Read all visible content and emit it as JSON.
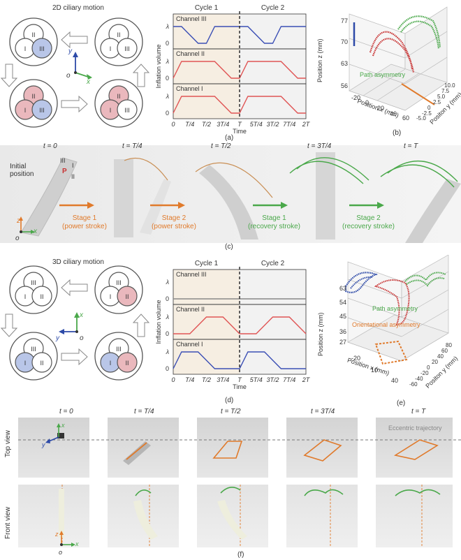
{
  "panel_a": {
    "title": "2D ciliary motion",
    "caption": "(a)",
    "axes": {
      "x": "x",
      "y": "y",
      "o": "o"
    },
    "units": [
      {
        "labels": [
          "II",
          "I",
          "III"
        ],
        "colors": [
          "#ffffff",
          "#ffffff",
          "#b9c6e8"
        ]
      },
      {
        "labels": [
          "II",
          "I",
          "III"
        ],
        "colors": [
          "#ffffff",
          "#ffffff",
          "#ffffff"
        ]
      },
      {
        "labels": [
          "II",
          "I",
          "III"
        ],
        "colors": [
          "#eab8bd",
          "#eab8bd",
          "#b9c6e8"
        ]
      },
      {
        "labels": [
          "II",
          "I",
          "III"
        ],
        "colors": [
          "#eab8bd",
          "#eab8bd",
          "#ffffff"
        ]
      }
    ]
  },
  "chart_a": {
    "cycle1": "Cycle 1",
    "cycle2": "Cycle 2",
    "ylabel": "Inflation volume",
    "xlabel": "Time",
    "channels": [
      {
        "name": "Channel III",
        "color": "#3b4fb5"
      },
      {
        "name": "Channel II",
        "color": "#e05555"
      },
      {
        "name": "Channel I",
        "color": "#e05555"
      }
    ],
    "yticks": [
      "0",
      "λ"
    ],
    "xticks": [
      "0",
      "T/4",
      "T/2",
      "3T/4",
      "T",
      "5T/4",
      "3T/2",
      "7T/4",
      "2T"
    ]
  },
  "panel_b": {
    "caption": "(b)",
    "zlabel": "Position z (mm)",
    "xlabel": "Position x (mm)",
    "ylabel": "Positon y (mm)",
    "zticks": [
      "77",
      "70",
      "63",
      "56"
    ],
    "xticks": [
      "-20",
      "0",
      "20",
      "40",
      "60"
    ],
    "yticks": [
      "-5.0",
      "-2.5",
      "0",
      "2.5",
      "5.0",
      "7.5",
      "10.0"
    ],
    "annotation": "Path asymmetry"
  },
  "panel_c": {
    "caption": "(c)",
    "times": [
      "t = 0",
      "t = T/4",
      "t = T/2",
      "t = 3T/4",
      "t = T"
    ],
    "initial": "Initial position",
    "marks": {
      "III": "III",
      "I": "I",
      "II": "II",
      "P": "P"
    },
    "axes": {
      "x": "x",
      "z": "z",
      "o": "o"
    },
    "stages": [
      {
        "text": "Stage 1\n(power stroke)",
        "line1": "Stage 1",
        "line2": "(power stroke)",
        "color": "#e07a2b"
      },
      {
        "text": "Stage 2\n(power stroke)",
        "line1": "Stage 2",
        "line2": "(power stroke)",
        "color": "#e07a2b"
      },
      {
        "text": "Stage 1\n(recovery stroke)",
        "line1": "Stage 1",
        "line2": "(recovery stroke)",
        "color": "#4aa84a"
      },
      {
        "text": "Stage 2\n(recovery stroke)",
        "line1": "Stage 2",
        "line2": "(recovery stroke)",
        "color": "#4aa84a"
      }
    ]
  },
  "panel_d": {
    "title": "3D ciliary motion",
    "caption": "(d)",
    "axes": {
      "x": "x",
      "y": "y",
      "o": "o"
    }
  },
  "chart_d": {
    "cycle1": "Cycle 1",
    "cycle2": "Cycle 2",
    "ylabel": "Inflation volume",
    "xlabel": "Time",
    "channels": [
      {
        "name": "Channel III",
        "color": "#888888"
      },
      {
        "name": "Channel II",
        "color": "#e05555"
      },
      {
        "name": "Channel I",
        "color": "#3b4fb5"
      }
    ],
    "yticks": [
      "0",
      "λ"
    ],
    "xticks": [
      "0",
      "T/4",
      "T/2",
      "3T/4",
      "T",
      "5T/4",
      "3T/2",
      "7T/4",
      "2T"
    ]
  },
  "panel_e": {
    "caption": "(e)",
    "zlabel": "Position z (mm)",
    "xlabel": "Position x (mm)",
    "ylabel": "Positon y (mm)",
    "zticks": [
      "63",
      "54",
      "45",
      "36",
      "27"
    ],
    "xticks": [
      "-20",
      "10",
      "40"
    ],
    "yticks": [
      "-60",
      "-40",
      "-20",
      "0",
      "20",
      "40",
      "60",
      "80"
    ],
    "annotation1": "Path asymmetry",
    "annotation2": "Orientational asymmetry"
  },
  "panel_f": {
    "caption": "(f)",
    "times": [
      "t = 0",
      "t = T/4",
      "t = T/2",
      "t = 3T/4",
      "t = T"
    ],
    "top_view": "Top view",
    "front_view": "Front view",
    "eccentric": "Eccentric trajectory",
    "axes": {
      "x": "x",
      "y": "y",
      "z": "z",
      "o": "o"
    }
  },
  "chart_data": [
    {
      "type": "line",
      "title": "",
      "xlabel": "Time",
      "ylabel": "Inflation volume",
      "categories": [
        "0",
        "T/4",
        "T/2",
        "3T/4",
        "T",
        "5T/4",
        "3T/2",
        "7T/4",
        "2T"
      ],
      "series": [
        {
          "name": "Channel III",
          "x": [
            0,
            0.125,
            0.375,
            0.5,
            0.625,
            0.875,
            1.0,
            1.125,
            1.375,
            1.5,
            1.625,
            1.875,
            2.0
          ],
          "values": [
            1,
            1,
            0,
            0,
            1,
            1,
            1,
            1,
            0,
            0,
            1,
            1,
            1
          ]
        },
        {
          "name": "Channel II",
          "x": [
            0,
            0.125,
            0.375,
            0.625,
            0.875,
            1.0,
            1.125,
            1.375,
            1.625,
            1.875,
            2.0
          ],
          "values": [
            0,
            1,
            1,
            1,
            0,
            0,
            1,
            1,
            1,
            0,
            0
          ]
        },
        {
          "name": "Channel I",
          "x": [
            0,
            0.125,
            0.375,
            0.625,
            0.875,
            1.0,
            1.125,
            1.375,
            1.625,
            1.875,
            2.0
          ],
          "values": [
            0,
            1,
            1,
            1,
            0,
            0,
            1,
            1,
            1,
            0,
            0
          ]
        }
      ]
    },
    {
      "type": "line",
      "title": "",
      "xlabel": "Time",
      "ylabel": "Inflation volume",
      "categories": [
        "0",
        "T/4",
        "T/2",
        "3T/4",
        "T",
        "5T/4",
        "3T/2",
        "7T/4",
        "2T"
      ],
      "series": [
        {
          "name": "Channel III",
          "x": [
            0,
            2.0
          ],
          "values": [
            0,
            0
          ]
        },
        {
          "name": "Channel II",
          "x": [
            0,
            0.25,
            0.5,
            0.75,
            1.0,
            1.25,
            1.5,
            1.75,
            2.0
          ],
          "values": [
            0,
            0,
            1,
            1,
            0,
            0,
            1,
            1,
            0
          ]
        },
        {
          "name": "Channel I",
          "x": [
            0,
            0.125,
            0.375,
            0.625,
            0.875,
            1.0,
            1.125,
            1.375,
            1.625,
            1.875,
            2.0
          ],
          "values": [
            0,
            1,
            1,
            0,
            0,
            0,
            1,
            1,
            0,
            0,
            0
          ]
        }
      ]
    }
  ]
}
